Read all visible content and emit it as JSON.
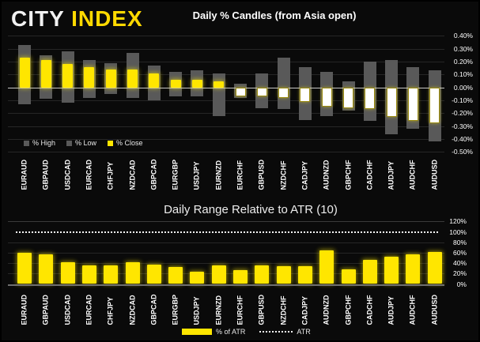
{
  "brand": {
    "city": "CITY",
    "index": "INDEX"
  },
  "colors": {
    "background": "#0a0a0a",
    "yellow": "#ffe600",
    "logo_yellow": "#ffd900",
    "gray_bar": "#595959",
    "white_body": "#ffffff",
    "grid": "#262626",
    "zero_line": "#c8c8c8",
    "axis_text": "#ffffff"
  },
  "categories": [
    "EURAUD",
    "GBPAUD",
    "USDCAD",
    "EURCAD",
    "CHFJPY",
    "NZDCAD",
    "GBPCAD",
    "EURGBP",
    "USDJPY",
    "EURNZD",
    "EURCHF",
    "GBPUSD",
    "NZDCHF",
    "CADJPY",
    "AUDNZD",
    "GBPCHF",
    "CADCHF",
    "AUDJPY",
    "AUDCHF",
    "AUDUSD"
  ],
  "chart_data": [
    {
      "type": "bar",
      "name": "daily-percent-candles",
      "title": "Daily % Candles (from Asia open)",
      "categories": [
        "EURAUD",
        "GBPAUD",
        "USDCAD",
        "EURCAD",
        "CHFJPY",
        "NZDCAD",
        "GBPCAD",
        "EURGBP",
        "USDJPY",
        "EURNZD",
        "EURCHF",
        "GBPUSD",
        "NZDCHF",
        "CADJPY",
        "AUDNZD",
        "GBPCHF",
        "CADCHF",
        "AUDJPY",
        "AUDCHF",
        "AUDUSD"
      ],
      "series": [
        {
          "name": "% High",
          "values": [
            0.33,
            0.25,
            0.28,
            0.21,
            0.19,
            0.27,
            0.17,
            0.12,
            0.13,
            0.11,
            0.03,
            0.11,
            0.23,
            0.16,
            0.12,
            0.05,
            0.2,
            0.21,
            0.16,
            0.13
          ]
        },
        {
          "name": "% Low",
          "values": [
            -0.13,
            -0.09,
            -0.12,
            -0.08,
            -0.05,
            -0.08,
            -0.1,
            -0.07,
            -0.07,
            -0.22,
            -0.08,
            -0.16,
            -0.17,
            -0.25,
            -0.22,
            -0.18,
            -0.26,
            -0.36,
            -0.32,
            -0.42
          ]
        },
        {
          "name": "% Close",
          "values": [
            0.23,
            0.21,
            0.18,
            0.16,
            0.14,
            0.14,
            0.11,
            0.06,
            0.06,
            0.05,
            -0.07,
            -0.07,
            -0.08,
            -0.11,
            -0.15,
            -0.16,
            -0.17,
            -0.23,
            -0.26,
            -0.28
          ]
        }
      ],
      "y_ticks": [
        "0.40%",
        "0.30%",
        "0.20%",
        "0.10%",
        "0.00%",
        "-0.10%",
        "-0.20%",
        "-0.30%",
        "-0.40%",
        "-0.50%"
      ],
      "ylim": [
        -0.5,
        0.45
      ],
      "legend": [
        "% High",
        "% Low",
        "% Close"
      ],
      "legend_position": "bottom-left",
      "grid": true,
      "axis_position": "right"
    },
    {
      "type": "bar",
      "name": "daily-range-relative-to-atr",
      "title": "Daily Range Relative to ATR (10)",
      "categories": [
        "EURAUD",
        "GBPAUD",
        "USDCAD",
        "EURCAD",
        "CHFJPY",
        "NZDCAD",
        "GBPCAD",
        "EURGBP",
        "USDJPY",
        "EURNZD",
        "EURCHF",
        "GBPUSD",
        "NZDCHF",
        "CADJPY",
        "AUDNZD",
        "GBPCHF",
        "CADCHF",
        "AUDJPY",
        "AUDCHF",
        "AUDUSD"
      ],
      "series": [
        {
          "name": "% of ATR",
          "values": [
            60,
            57,
            42,
            36,
            35,
            42,
            37,
            33,
            23,
            36,
            27,
            36,
            34,
            34,
            65,
            28,
            47,
            53,
            57,
            61
          ]
        },
        {
          "name": "ATR",
          "type": "reference-dotted-line",
          "value": 100
        }
      ],
      "y_ticks": [
        "120%",
        "100%",
        "80%",
        "60%",
        "40%",
        "20%",
        "0%"
      ],
      "ylim": [
        0,
        124
      ],
      "legend": [
        "% of ATR",
        "ATR"
      ],
      "legend_position": "bottom-center",
      "grid": true,
      "axis_position": "right"
    }
  ]
}
